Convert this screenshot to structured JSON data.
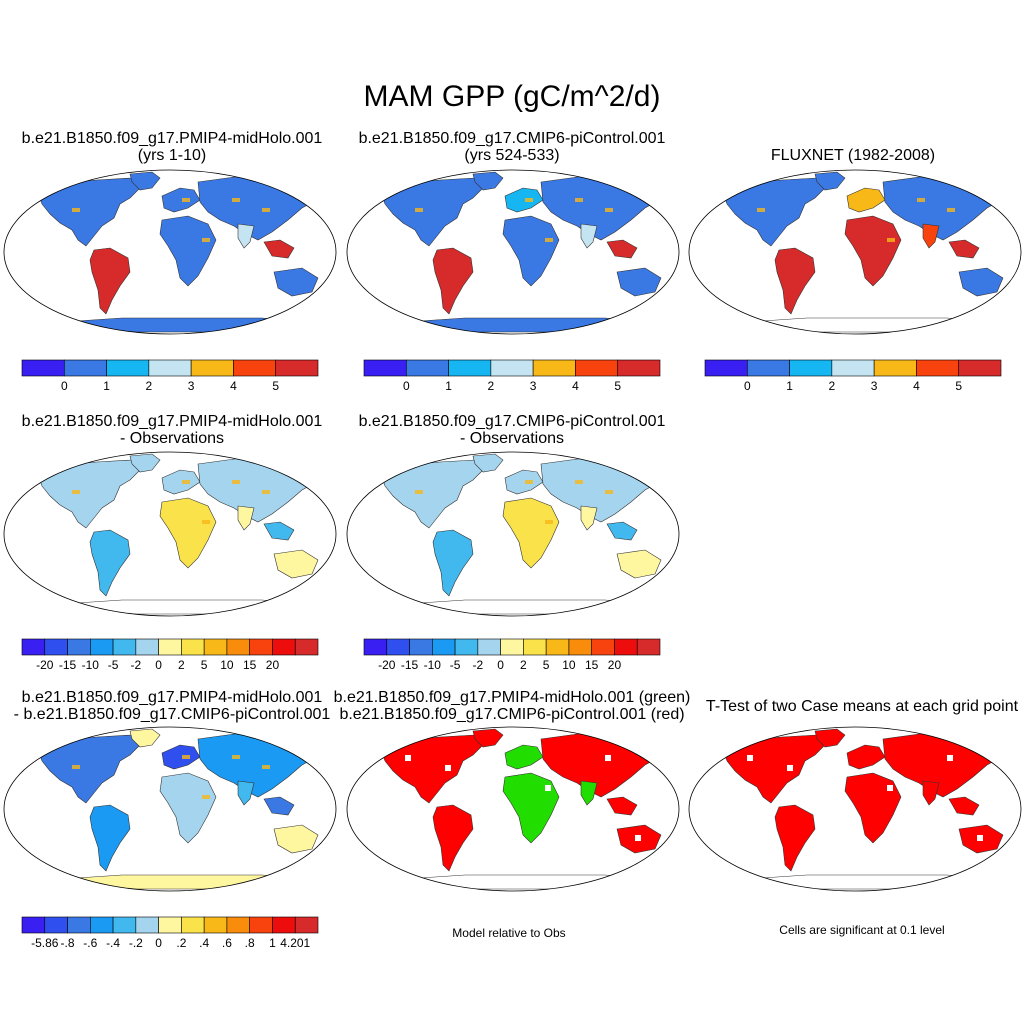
{
  "title": "MAM GPP (gC/m^2/d)",
  "colors": {
    "ocean": "#ffffff",
    "outline": "#333333",
    "absolute": [
      "#3a1ff2",
      "#3a78e3",
      "#16b6f2",
      "#c4e4f2",
      "#f7b818",
      "#f8430f",
      "#d72a2a"
    ],
    "diff_obs": [
      "#3a1ff2",
      "#2f50ef",
      "#3a78e3",
      "#1a9af2",
      "#41b8ee",
      "#a4d4ee",
      "#fff6a0",
      "#f9e24a",
      "#f7b818",
      "#f98d0b",
      "#f8430f",
      "#ee0d0d",
      "#d72a2a"
    ],
    "case_diff": [
      "#3a1ff2",
      "#2f50ef",
      "#3a78e3",
      "#1a9af2",
      "#41b8ee",
      "#a4d4ee",
      "#fff6a0",
      "#f9e24a",
      "#f7b818",
      "#f98d0b",
      "#f8430f",
      "#ee0d0d",
      "#d72a2a"
    ],
    "green": "#22dd00",
    "red": "#ff0000"
  },
  "panels": [
    {
      "id": "p1",
      "title1": "b.e21.B1850.f09_g17.PMIP4-midHolo.001",
      "title2": "(yrs 1-10)",
      "fill": "absolute",
      "variant": 1,
      "antarctica": true
    },
    {
      "id": "p2",
      "title1": "b.e21.B1850.f09_g17.CMIP6-piControl.001",
      "title2": "(yrs 524-533)",
      "fill": "absolute",
      "variant": 2,
      "antarctica": true
    },
    {
      "id": "p3",
      "title1": "FLUXNET (1982-2008)",
      "title2": "",
      "fill": "absolute",
      "variant": 3,
      "antarctica": false
    },
    {
      "id": "p4",
      "title1": "b.e21.B1850.f09_g17.PMIP4-midHolo.001",
      "title2": "- Observations",
      "fill": "diff_obs",
      "variant": 4,
      "antarctica": false
    },
    {
      "id": "p5",
      "title1": "b.e21.B1850.f09_g17.CMIP6-piControl.001",
      "title2": "- Observations",
      "fill": "diff_obs",
      "variant": 5,
      "antarctica": false
    },
    {
      "id": "p6",
      "title1": "b.e21.B1850.f09_g17.PMIP4-midHolo.001",
      "title2": "- b.e21.B1850.f09_g17.CMIP6-piControl.001",
      "fill": "case_diff",
      "variant": 6,
      "antarctica": true
    },
    {
      "id": "p7",
      "title1": "b.e21.B1850.f09_g17.PMIP4-midHolo.001 (green)",
      "title2": "b.e21.B1850.f09_g17.CMIP6-piControl.001 (red)",
      "fill": "greenred",
      "variant": 7,
      "antarctica": false
    },
    {
      "id": "p8",
      "title1": "T-Test of two Case means at each grid point",
      "title2": "",
      "fill": "red",
      "variant": 8,
      "antarctica": false
    }
  ],
  "colorbars": [
    {
      "id": "cb1",
      "scale": "absolute",
      "labels": [
        "0",
        "1",
        "2",
        "3",
        "4",
        "5"
      ]
    },
    {
      "id": "cb2",
      "scale": "absolute",
      "labels": [
        "0",
        "1",
        "2",
        "3",
        "4",
        "5"
      ]
    },
    {
      "id": "cb3",
      "scale": "absolute",
      "labels": [
        "0",
        "1",
        "2",
        "3",
        "4",
        "5"
      ]
    },
    {
      "id": "cb4",
      "scale": "diff_obs",
      "labels": [
        "-20",
        "-15",
        "-10",
        "-5",
        "-2",
        "0",
        "2",
        "5",
        "10",
        "15",
        "20"
      ]
    },
    {
      "id": "cb5",
      "scale": "diff_obs",
      "labels": [
        "-20",
        "-15",
        "-10",
        "-5",
        "-2",
        "0",
        "2",
        "5",
        "10",
        "15",
        "20"
      ]
    },
    {
      "id": "cb6",
      "scale": "case_diff",
      "labels": [
        "-5.86",
        "-.8",
        "-.6",
        "-.4",
        "-.2",
        "0",
        ".2",
        ".4",
        ".6",
        ".8",
        "1",
        "4.201"
      ]
    }
  ],
  "notes": {
    "model_relative": "Model relative to Obs",
    "significance": "Cells are significant at 0.1 level"
  }
}
